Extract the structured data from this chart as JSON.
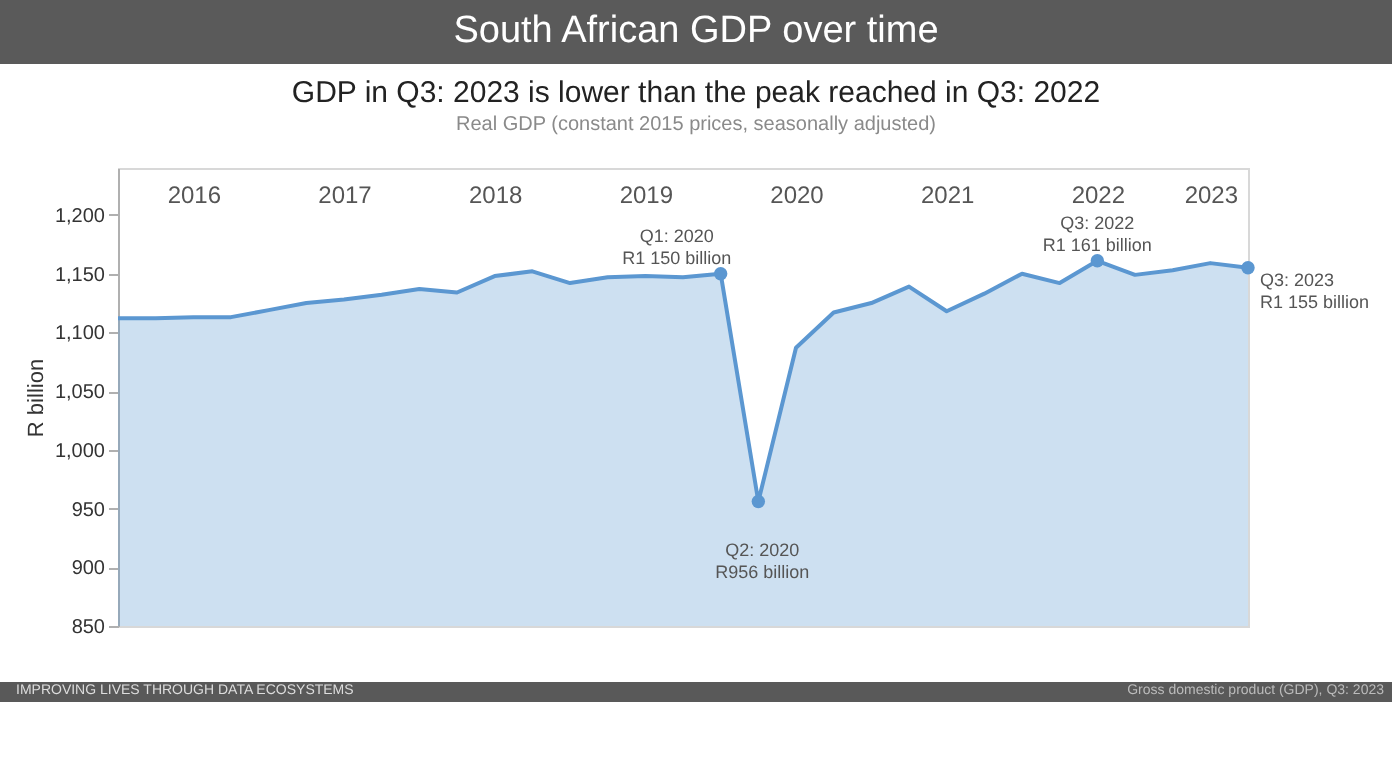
{
  "chart_data": {
    "type": "area",
    "title": "South African GDP over time",
    "subtitle": "GDP in Q3: 2023 is lower than the peak reached in Q3: 2022",
    "ylabel": "R billion",
    "categories": [
      null,
      null,
      "2016",
      null,
      null,
      null,
      "2017",
      null,
      null,
      null,
      "2018",
      null,
      null,
      null,
      "2019",
      null,
      null,
      null,
      "2020",
      null,
      null,
      null,
      "2021",
      null,
      null,
      null,
      "2022",
      null,
      null,
      "2023",
      null
    ],
    "series": [
      {
        "color": "#5b97d1",
        "values": [
          1112,
          1112,
          1113,
          1113,
          1119,
          1125,
          1128,
          1132,
          1137,
          1134,
          1148,
          1152,
          1142,
          1147,
          1148,
          1147,
          1150,
          956,
          1087,
          1117,
          1125,
          1139,
          1118,
          1133,
          1150,
          1142,
          1161,
          1149,
          1153,
          1159,
          1155
        ]
      }
    ],
    "ylim": [
      850,
      1240
    ],
    "yticks": [
      850,
      900,
      950,
      {
        "value": 1000,
        "label": "1,000"
      },
      {
        "value": 1050,
        "label": "1,050"
      },
      {
        "value": 1100,
        "label": "1,100"
      },
      {
        "value": 1150,
        "label": "1,150"
      },
      {
        "value": 1200,
        "label": "1,200"
      }
    ],
    "tick_labels": true,
    "grid": false,
    "annotations": [
      {
        "text": "Q1: 2020\nR1 150 billion",
        "y": 1150
      },
      {
        "text": "Q2: 2020\nR956 billion",
        "y": 956
      },
      {
        "text": "Q3: 2022\nR1 161 billion",
        "y": 1161
      },
      "Q3: 2023\nR1 155 billion",
      "Real GDP (constant 2015 prices, seasonally adjusted)",
      "IMPROVING LIVES THROUGH  DATA  ECOSYSTEMS",
      "Gross domestic product (GDP), Q3: 2023"
    ]
  }
}
